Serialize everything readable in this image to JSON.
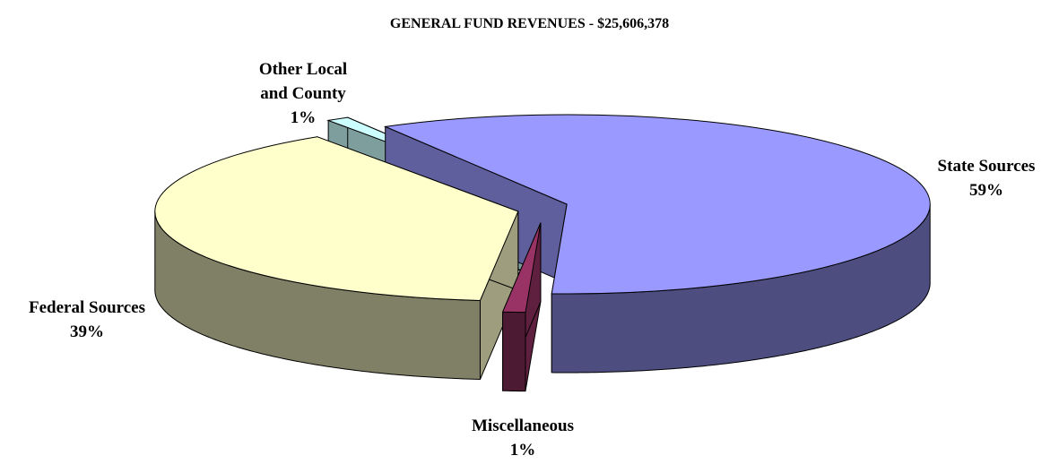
{
  "chart_data": {
    "type": "pie3d",
    "title": "GENERAL FUND REVENUES - $25,606,378",
    "categories": [
      "State Sources",
      "Miscellaneous",
      "Federal Sources",
      "Other Local and County"
    ],
    "values": [
      59,
      1,
      39,
      1
    ],
    "value_labels": [
      "59%",
      "1%",
      "39%",
      "1%"
    ],
    "colors": [
      "#9999ff",
      "#993366",
      "#ffffcc",
      "#ccffff"
    ]
  }
}
